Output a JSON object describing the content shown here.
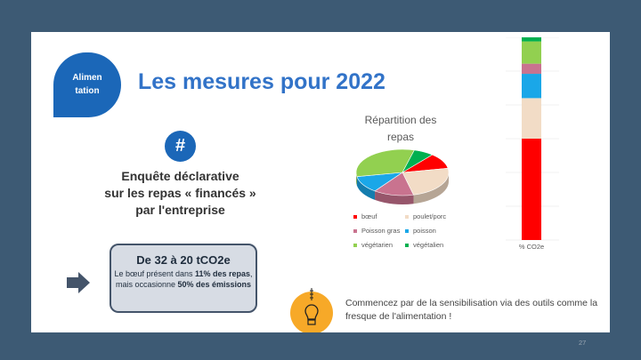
{
  "tag": {
    "label": "Alimen tation"
  },
  "title": "Les mesures pour 2022",
  "hash": "#",
  "enquete": {
    "line1": "Enquête déclarative",
    "line2": "sur les repas « financés »",
    "line3": "par l'entreprise"
  },
  "box": {
    "headline": "De 32 à 20 tCO2e",
    "text1": "Le bœuf présent dans ",
    "bold1": "11% des repas",
    "text2": ", mais occasionne ",
    "bold2": "50% des émissions"
  },
  "tip": "Commencez par de la sensibilisation via des outils comme la fresque de l'alimentation !",
  "page_number": "27",
  "chart_data": [
    {
      "type": "pie",
      "title": "Répartition des repas",
      "categories": [
        "bœuf",
        "poulet/porc",
        "Poisson gras",
        "poisson",
        "végétarien",
        "végétalien"
      ],
      "values": [
        11,
        24,
        14,
        12,
        32,
        7
      ],
      "colors": [
        "#ff0000",
        "#f2dcc6",
        "#c9738f",
        "#1aa7e8",
        "#92d050",
        "#00b050"
      ],
      "legend": "bottom"
    },
    {
      "type": "bar",
      "stacked": true,
      "categories": [
        "% CO2e"
      ],
      "series": [
        {
          "name": "bœuf",
          "values": [
            50
          ]
        },
        {
          "name": "poulet/porc",
          "values": [
            20
          ]
        },
        {
          "name": "poisson",
          "values": [
            12
          ]
        },
        {
          "name": "Poisson gras",
          "values": [
            5
          ]
        },
        {
          "name": "végétarien",
          "values": [
            11
          ]
        },
        {
          "name": "végétalien",
          "values": [
            2
          ]
        }
      ],
      "colors": [
        "#ff0000",
        "#f2dcc6",
        "#1aa7e8",
        "#c9738f",
        "#92d050",
        "#00b050"
      ],
      "ylim": [
        0,
        100
      ],
      "grid": true
    }
  ]
}
